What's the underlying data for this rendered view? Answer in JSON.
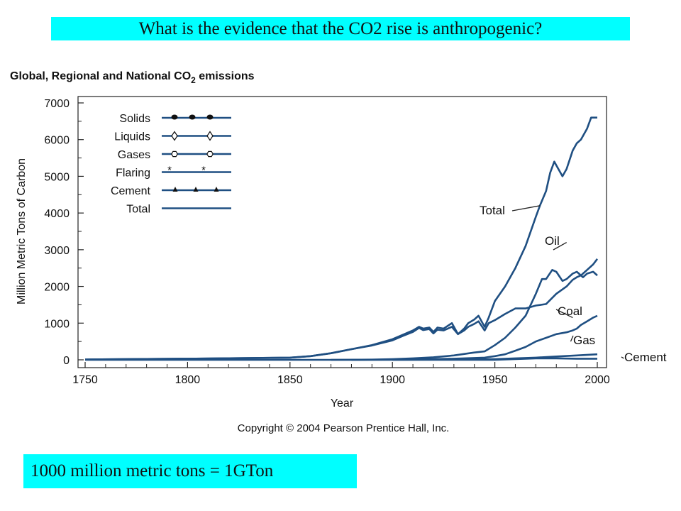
{
  "slide": {
    "title": "What is the evidence that the CO2 rise is anthropogenic?",
    "note": "1000 million metric tons = 1GTon",
    "banner_color": "#00ffff"
  },
  "chart_data": {
    "type": "line",
    "title_main": "Global, Regional and National CO",
    "title_sub": "2",
    "title_rest": " emissions",
    "xlabel": "Year",
    "ylabel": "Million Metric Tons of Carbon",
    "xlim": [
      1750,
      2000
    ],
    "ylim": [
      0,
      7000
    ],
    "xticks": [
      1750,
      1800,
      1850,
      1900,
      1950,
      2000
    ],
    "yticks": [
      0,
      1000,
      2000,
      3000,
      4000,
      5000,
      6000,
      7000
    ],
    "copyright": "Copyright © 2004 Pearson Prentice Hall, Inc.",
    "line_color": "#1f4f82",
    "legend": [
      {
        "label": "Solids",
        "marker": "dot"
      },
      {
        "label": "Liquids",
        "marker": "diamond"
      },
      {
        "label": "Gases",
        "marker": "hexagon"
      },
      {
        "label": "Flaring",
        "marker": "star"
      },
      {
        "label": "Cement",
        "marker": "triangle"
      },
      {
        "label": "Total",
        "marker": "none"
      }
    ],
    "series": [
      {
        "name": "Total",
        "label_at": [
          1972,
          4200
        ],
        "x": [
          1750,
          1800,
          1850,
          1860,
          1870,
          1880,
          1890,
          1900,
          1905,
          1910,
          1913,
          1915,
          1918,
          1920,
          1922,
          1925,
          1929,
          1932,
          1935,
          1937,
          1940,
          1942,
          1945,
          1947,
          1950,
          1955,
          1960,
          1965,
          1970,
          1972,
          1975,
          1977,
          1979,
          1980,
          1983,
          1985,
          1988,
          1990,
          1992,
          1995,
          1997,
          1998,
          2000
        ],
        "y": [
          10,
          30,
          60,
          100,
          180,
          290,
          400,
          560,
          680,
          800,
          900,
          850,
          880,
          760,
          880,
          850,
          1000,
          700,
          850,
          1000,
          1100,
          1200,
          900,
          1150,
          1600,
          2000,
          2500,
          3100,
          3900,
          4200,
          4600,
          5100,
          5400,
          5300,
          5000,
          5200,
          5700,
          5900,
          6000,
          6300,
          6600,
          6600,
          6600
        ]
      },
      {
        "name": "Oil",
        "label_at": [
          1985,
          3200
        ],
        "x": [
          1870,
          1890,
          1900,
          1910,
          1920,
          1930,
          1940,
          1945,
          1950,
          1955,
          1960,
          1965,
          1970,
          1973,
          1975,
          1978,
          1980,
          1983,
          1985,
          1988,
          1990,
          1993,
          1995,
          1998,
          2000
        ],
        "y": [
          0,
          5,
          20,
          40,
          70,
          120,
          200,
          230,
          400,
          600,
          880,
          1200,
          1800,
          2200,
          2200,
          2450,
          2400,
          2150,
          2200,
          2350,
          2400,
          2250,
          2350,
          2400,
          2300
        ]
      },
      {
        "name": "Coal",
        "label_at": [
          1988,
          1150
        ],
        "x": [
          1750,
          1800,
          1850,
          1860,
          1870,
          1880,
          1890,
          1900,
          1905,
          1910,
          1913,
          1915,
          1918,
          1920,
          1922,
          1925,
          1929,
          1932,
          1935,
          1937,
          1940,
          1942,
          1945,
          1947,
          1950,
          1955,
          1960,
          1965,
          1970,
          1975,
          1980,
          1985,
          1988,
          1990,
          1992,
          1995,
          1998,
          2000
        ],
        "y": [
          10,
          30,
          60,
          100,
          180,
          290,
          390,
          530,
          650,
          760,
          870,
          810,
          840,
          720,
          820,
          800,
          900,
          700,
          800,
          900,
          980,
          1050,
          800,
          1000,
          1080,
          1250,
          1400,
          1400,
          1480,
          1520,
          1800,
          2000,
          2180,
          2250,
          2300,
          2450,
          2600,
          2750
        ]
      },
      {
        "name": "Gas",
        "label_at": [
          1987,
          500
        ],
        "x": [
          1880,
          1900,
          1920,
          1930,
          1940,
          1945,
          1950,
          1955,
          1960,
          1965,
          1970,
          1975,
          1980,
          1985,
          1988,
          1990,
          1992,
          1995,
          1998,
          2000
        ],
        "y": [
          0,
          5,
          20,
          30,
          50,
          60,
          100,
          150,
          250,
          350,
          500,
          600,
          700,
          750,
          800,
          850,
          950,
          1050,
          1150,
          1200
        ]
      },
      {
        "name": "Cement",
        "label_at": [
          2013,
          40
        ],
        "x": [
          1900,
          1920,
          1940,
          1950,
          1960,
          1970,
          1980,
          1990,
          2000
        ],
        "y": [
          0,
          5,
          10,
          20,
          40,
          60,
          90,
          120,
          150
        ]
      },
      {
        "name": "Flaring",
        "x": [
          1750,
          1850,
          1900,
          1950,
          1960,
          1970,
          1980,
          1990,
          2000
        ],
        "y": [
          0,
          0,
          0,
          0,
          20,
          40,
          40,
          30,
          30
        ]
      }
    ]
  }
}
